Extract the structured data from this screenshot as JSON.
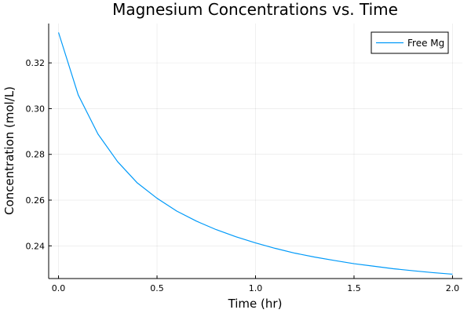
{
  "chart_data": {
    "type": "line",
    "title": "Magnesium Concentrations vs. Time",
    "xlabel": "Time (hr)",
    "ylabel": "Concentration (mol/L)",
    "xlim": [
      -0.05,
      2.05
    ],
    "ylim": [
      0.2257,
      0.3372
    ],
    "xticks": [
      0.0,
      0.5,
      1.0,
      1.5,
      2.0
    ],
    "xtick_labels": [
      "0.0",
      "0.5",
      "1.0",
      "1.5",
      "2.0"
    ],
    "yticks": [
      0.24,
      0.26,
      0.28,
      0.3,
      0.32
    ],
    "ytick_labels": [
      "0.24",
      "0.26",
      "0.28",
      "0.30",
      "0.32"
    ],
    "grid": true,
    "legend_position": "top-right",
    "series": [
      {
        "name": "Free Mg",
        "color": "#009af9",
        "x": [
          0.0,
          0.1,
          0.2,
          0.3,
          0.4,
          0.5,
          0.6,
          0.7,
          0.8,
          0.9,
          1.0,
          1.1,
          1.2,
          1.3,
          1.4,
          1.5,
          1.6,
          1.7,
          1.8,
          1.9,
          2.0
        ],
        "y": [
          0.3333,
          0.306,
          0.2889,
          0.2768,
          0.2675,
          0.2608,
          0.2552,
          0.2508,
          0.2471,
          0.244,
          0.2413,
          0.2389,
          0.2368,
          0.2351,
          0.2336,
          0.2322,
          0.2311,
          0.23,
          0.2291,
          0.2283,
          0.2276
        ]
      }
    ]
  }
}
